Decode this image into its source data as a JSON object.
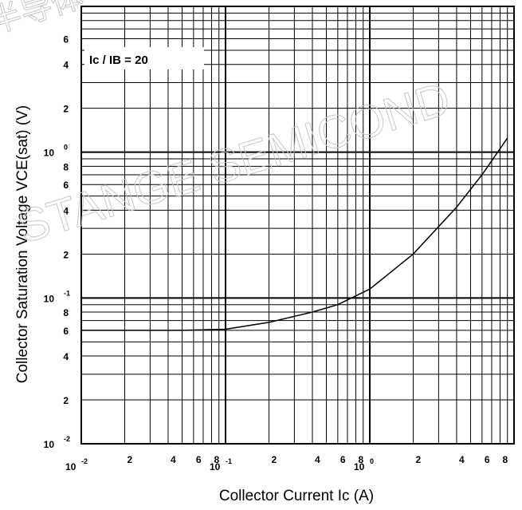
{
  "chart_data": {
    "type": "line",
    "xlabel": "Collector Current  Ic  (A)",
    "ylabel": "Collector Saturation Voltage  VCE(sat)  (V)",
    "xscale": "log",
    "yscale": "log",
    "xlim": [
      0.01,
      10
    ],
    "ylim": [
      0.01,
      10
    ],
    "grid": true,
    "annotations": [
      "Ic / IB = 20"
    ],
    "x_ticks": [
      {
        "base": "10",
        "exp": "-2"
      },
      {
        "text": "2"
      },
      {
        "text": "4"
      },
      {
        "text": "6"
      },
      {
        "text": "8"
      },
      {
        "base": "10",
        "exp": "-1"
      },
      {
        "text": "2"
      },
      {
        "text": "4"
      },
      {
        "text": "6"
      },
      {
        "text": "8"
      },
      {
        "base": "10",
        "exp": "0"
      },
      {
        "text": "2"
      },
      {
        "text": "4"
      },
      {
        "text": "6"
      },
      {
        "text": "8"
      }
    ],
    "y_ticks": [
      {
        "base": "10",
        "exp": "-2"
      },
      {
        "text": "2"
      },
      {
        "text": "4"
      },
      {
        "text": "6"
      },
      {
        "text": "8"
      },
      {
        "base": "10",
        "exp": "-1"
      },
      {
        "text": "2"
      },
      {
        "text": "4"
      },
      {
        "text": "6"
      },
      {
        "text": "8"
      },
      {
        "base": "10",
        "exp": "0"
      },
      {
        "text": "2"
      },
      {
        "text": "4"
      },
      {
        "text": "6"
      }
    ],
    "series": [
      {
        "x": [
          0.01,
          0.02,
          0.05,
          0.1,
          0.2,
          0.4,
          0.6,
          1.0,
          2.0,
          4.0,
          6.0,
          9.0
        ],
        "y": [
          0.06,
          0.06,
          0.06,
          0.061,
          0.068,
          0.08,
          0.09,
          0.115,
          0.2,
          0.42,
          0.7,
          1.25
        ]
      }
    ]
  },
  "watermark": {
    "lines": [
      "STANGE SEMICOND",
      "半导体"
    ]
  },
  "colors": {
    "grid": "#000000",
    "curve": "#000000",
    "background": "#ffffff",
    "watermark": "#c8c8c8"
  }
}
